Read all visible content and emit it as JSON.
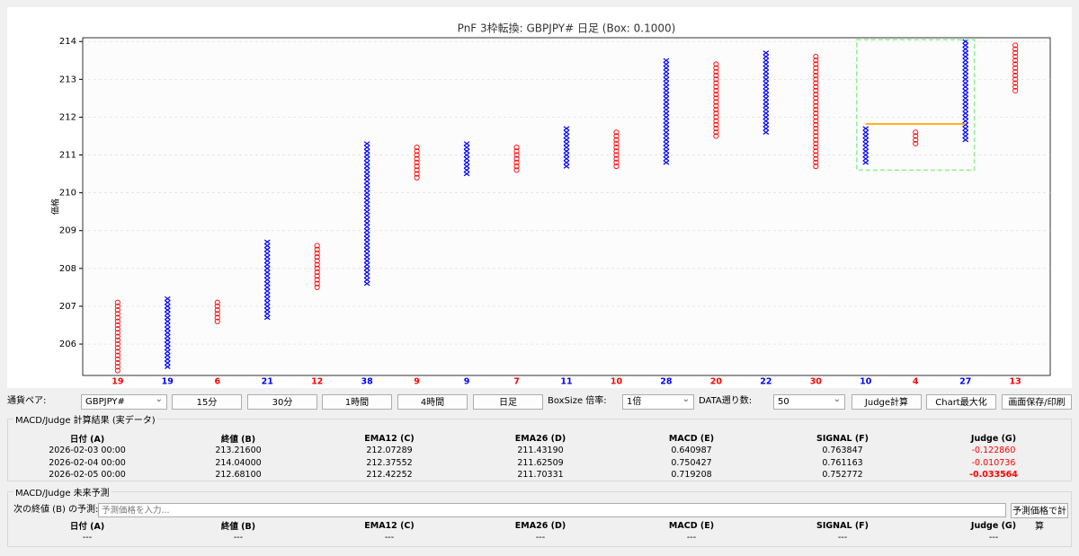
{
  "chart_data": {
    "type": "pnf",
    "title": "PnF 3枠転換: GBPJPY# 日足 (Box: 0.1000)",
    "y_label": "価格",
    "x_color": "#0000ff",
    "o_color": "#ff0000",
    "columns": [
      {
        "kind": "O",
        "count": 19,
        "low": 205.3,
        "high": 207.1
      },
      {
        "kind": "X",
        "count": 19,
        "low": 205.4,
        "high": 207.2
      },
      {
        "kind": "O",
        "count": 6,
        "low": 206.6,
        "high": 207.1
      },
      {
        "kind": "X",
        "count": 21,
        "low": 206.7,
        "high": 208.7
      },
      {
        "kind": "O",
        "count": 12,
        "low": 207.5,
        "high": 208.6
      },
      {
        "kind": "X",
        "count": 38,
        "low": 207.6,
        "high": 211.3
      },
      {
        "kind": "O",
        "count": 9,
        "low": 210.4,
        "high": 211.2
      },
      {
        "kind": "X",
        "count": 9,
        "low": 210.5,
        "high": 211.3
      },
      {
        "kind": "O",
        "count": 7,
        "low": 210.6,
        "high": 211.2
      },
      {
        "kind": "X",
        "count": 11,
        "low": 210.7,
        "high": 211.7
      },
      {
        "kind": "O",
        "count": 10,
        "low": 210.7,
        "high": 211.6
      },
      {
        "kind": "X",
        "count": 28,
        "low": 210.8,
        "high": 213.5
      },
      {
        "kind": "O",
        "count": 20,
        "low": 211.5,
        "high": 213.4
      },
      {
        "kind": "X",
        "count": 22,
        "low": 211.6,
        "high": 213.7
      },
      {
        "kind": "O",
        "count": 30,
        "low": 210.7,
        "high": 213.6
      },
      {
        "kind": "X",
        "count": 10,
        "low": 210.8,
        "high": 211.7
      },
      {
        "kind": "O",
        "count": 4,
        "low": 211.3,
        "high": 211.6
      },
      {
        "kind": "X",
        "count": 27,
        "low": 211.4,
        "high": 214.0
      },
      {
        "kind": "O",
        "count": 13,
        "low": 212.7,
        "high": 213.9
      }
    ],
    "xlim": [
      -0.7,
      18.7
    ],
    "ylim": [
      205.17,
      214.1
    ],
    "yticks": [
      206,
      207,
      208,
      209,
      210,
      211,
      212,
      213,
      214
    ],
    "grid": true,
    "level": {
      "value": 211.82,
      "color": "#ffa500"
    },
    "highlight": {
      "ylim": [
        210.6,
        214.05
      ],
      "color": "#90ee90"
    }
  },
  "controls": {
    "pair_label": "通貨ペア:",
    "pair": "GBPJPY#",
    "timeframes": [
      "15分",
      "30分",
      "1時間",
      "4時間",
      "日足"
    ],
    "boxsize_label": "BoxSize 倍率:",
    "boxsize": "1倍",
    "data_count_label": "DATA遡り数:",
    "data_count": "50",
    "buttons": [
      "Judge計算",
      "Chart最大化",
      "画面保存/印刷"
    ]
  },
  "results": {
    "title": "MACD/Judge 計算結果 (実データ)",
    "headers": [
      "日付 (A)",
      "終値 (B)",
      "EMA12 (C)",
      "EMA26 (D)",
      "MACD (E)",
      "SIGNAL (F)",
      "Judge (G)"
    ],
    "rows": [
      [
        "2026-02-03 00:00",
        "213.21600",
        "212.07289",
        "211.43190",
        "0.640987",
        "0.763847",
        "-0.122860"
      ],
      [
        "2026-02-04 00:00",
        "214.04000",
        "212.37552",
        "211.62509",
        "0.750427",
        "0.761163",
        "-0.010736"
      ],
      [
        "2026-02-05 00:00",
        "212.68100",
        "212.42252",
        "211.70331",
        "0.719208",
        "0.752772",
        "-0.033564"
      ]
    ]
  },
  "forecast": {
    "title": "MACD/Judge 未来予測",
    "prompt": "次の終値 (B) の予測:",
    "placeholder": "予測価格を入力...",
    "button": "予測価格で計算",
    "headers": [
      "日付 (A)",
      "終値 (B)",
      "EMA12 (C)",
      "EMA26 (D)",
      "MACD (E)",
      "SIGNAL (F)",
      "Judge (G)"
    ],
    "rows": [
      [
        "---",
        "---",
        "---",
        "---",
        "---",
        "---",
        "---"
      ]
    ]
  }
}
